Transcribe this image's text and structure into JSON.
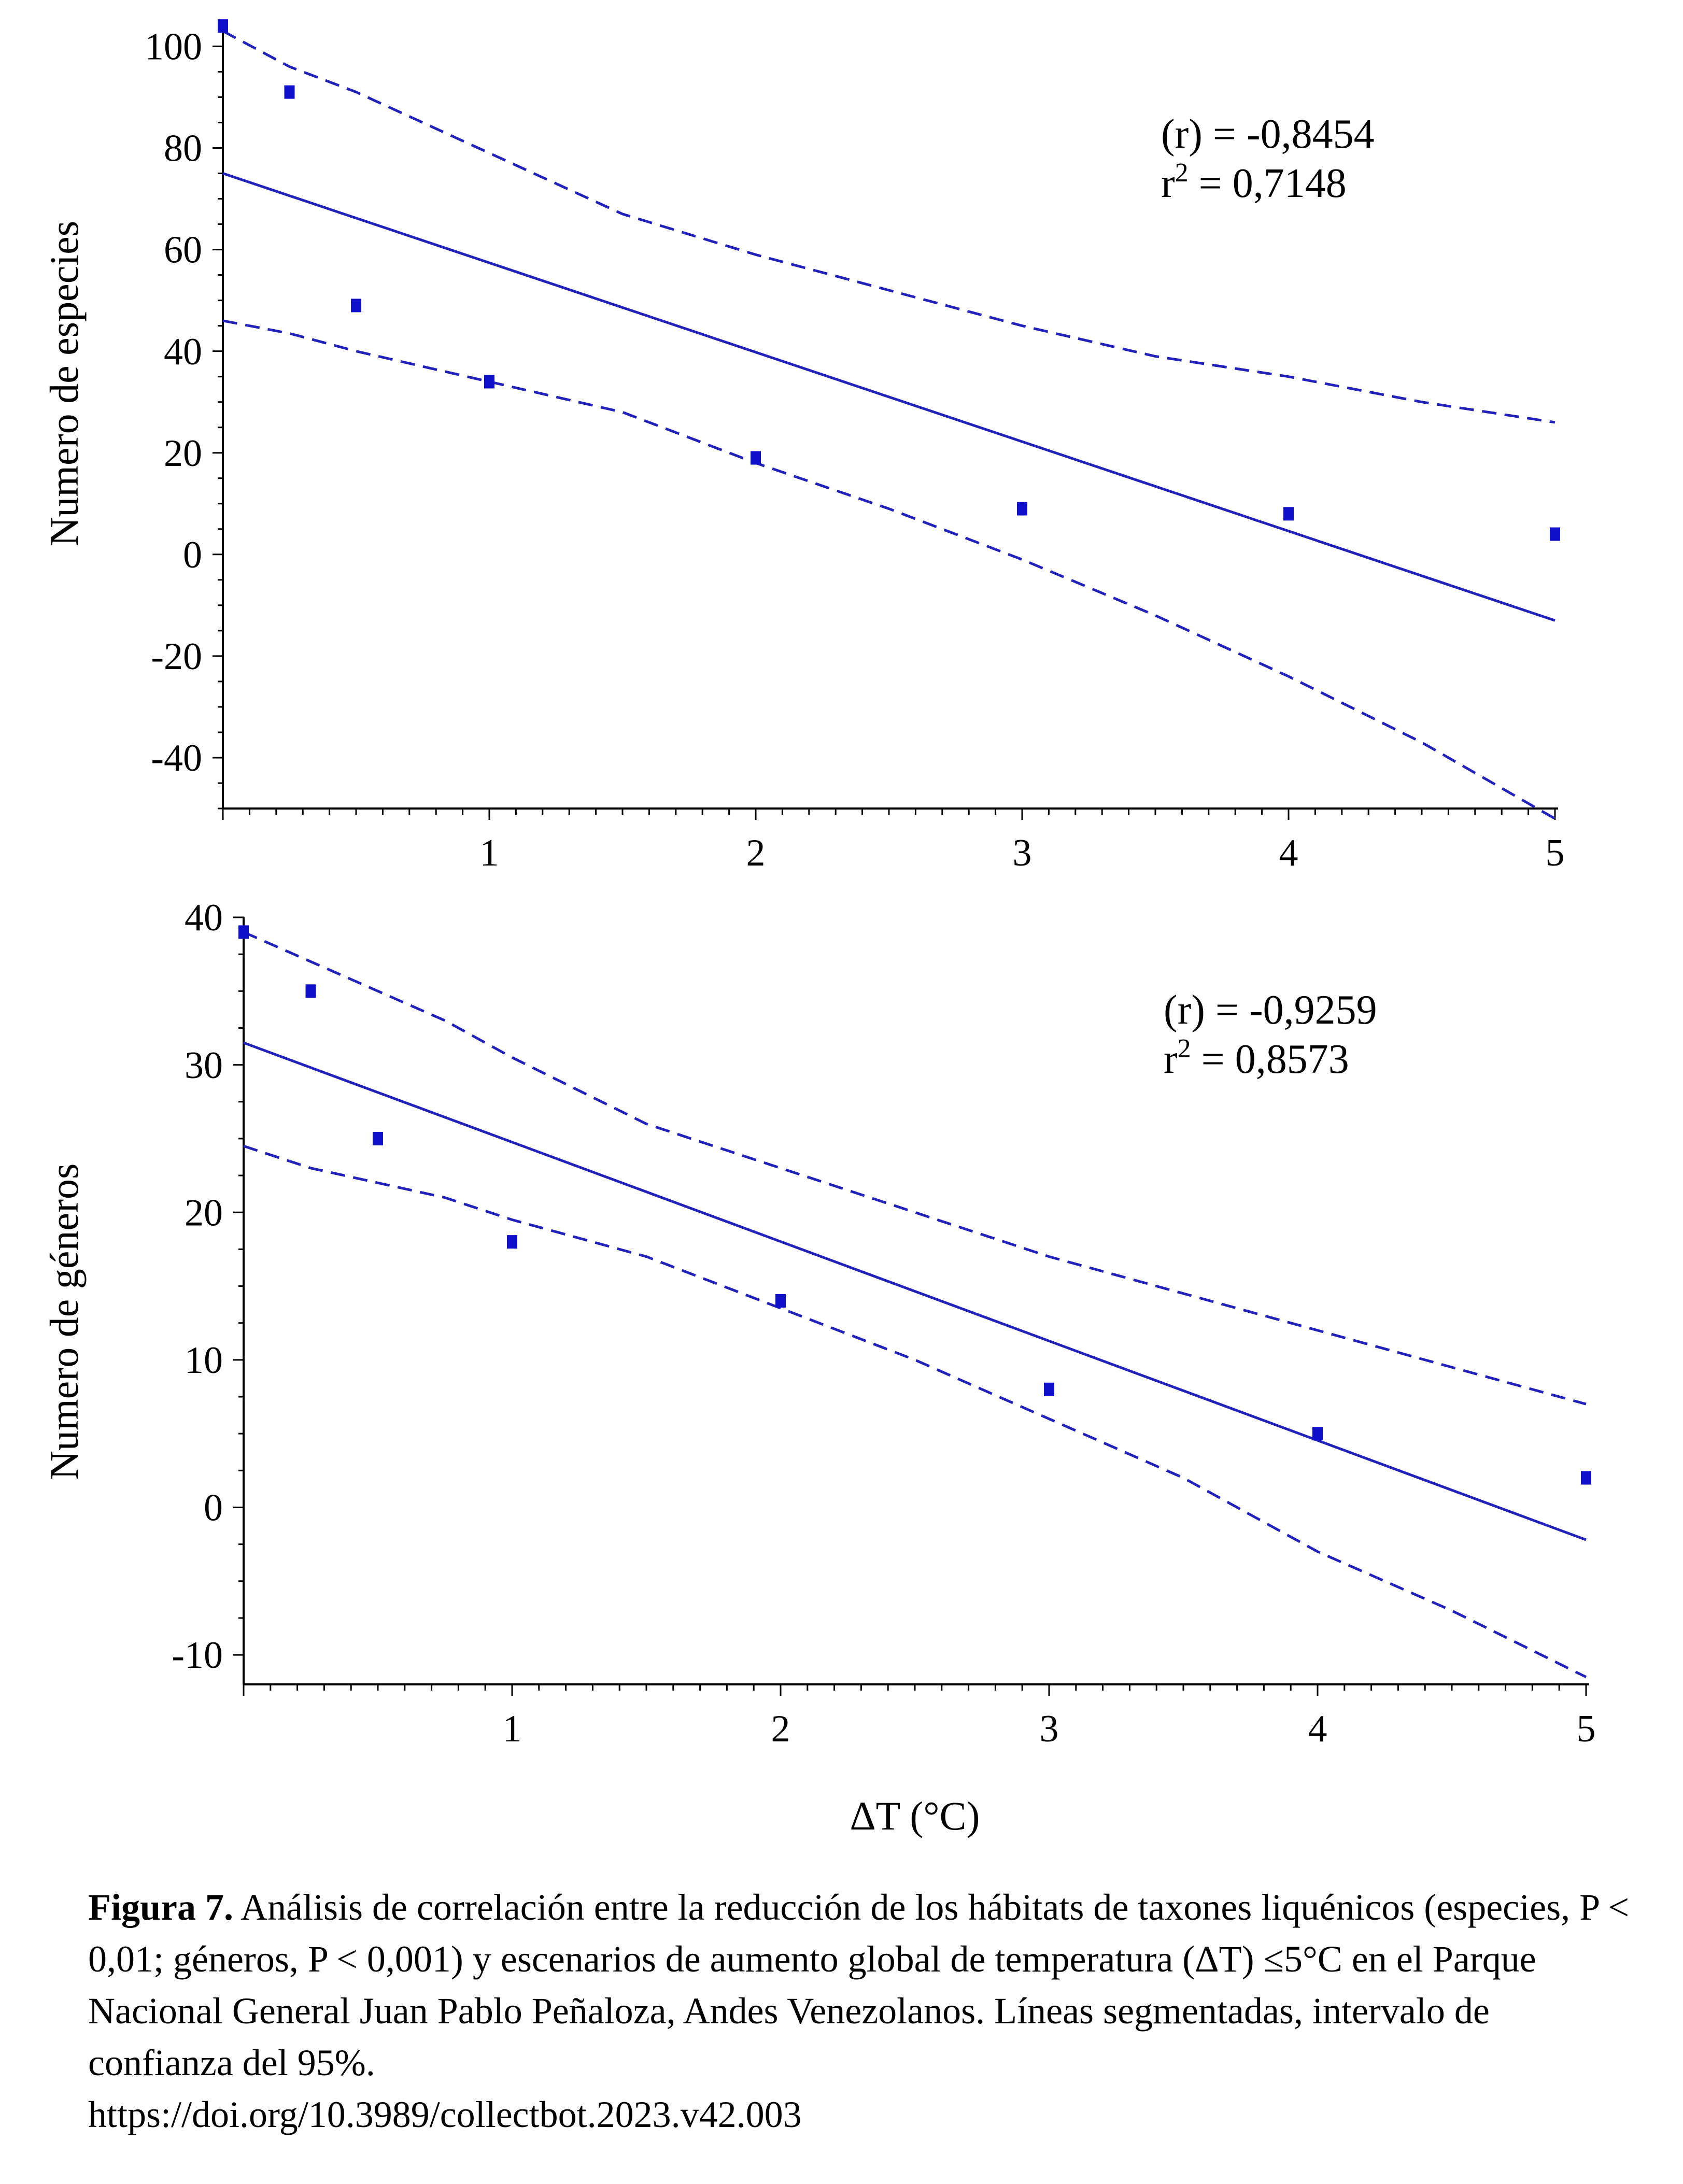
{
  "chart_data": [
    {
      "type": "scatter",
      "title": "",
      "xlabel": "",
      "ylabel": "Numero de especies",
      "xlim": [
        0,
        5
      ],
      "ylim": [
        -50,
        103
      ],
      "x_ticks": [
        1,
        2,
        3,
        4,
        5
      ],
      "y_ticks": [
        -40,
        -20,
        0,
        20,
        40,
        60,
        80,
        100
      ],
      "points": {
        "x": [
          0,
          0.25,
          0.5,
          1,
          2,
          3,
          4,
          5
        ],
        "y": [
          104,
          91,
          49,
          34,
          19,
          9,
          8,
          4
        ]
      },
      "fit_line": {
        "x": [
          0,
          5
        ],
        "y": [
          75,
          -13
        ]
      },
      "ci_upper": {
        "x": [
          0,
          0.25,
          0.5,
          0.75,
          1,
          1.5,
          2,
          2.5,
          3,
          3.5,
          4,
          4.5,
          5
        ],
        "y": [
          103,
          96,
          91,
          85,
          79,
          67,
          59,
          52,
          45,
          39,
          35,
          30,
          26
        ]
      },
      "ci_lower": {
        "x": [
          0,
          0.25,
          0.5,
          0.75,
          1,
          1.5,
          2,
          2.5,
          3,
          3.5,
          4,
          4.5,
          5
        ],
        "y": [
          46,
          43.5,
          40,
          37,
          34,
          28,
          18,
          9,
          -1,
          -12,
          -24,
          -37,
          -52
        ]
      },
      "annotation": {
        "r_line": "(r) = -0,8454",
        "r2_prefix": "r",
        "r2_exp": "2",
        "r2_value": " = 0,7148"
      },
      "colors": {
        "points": "#1010c8",
        "lines": "#2222bb",
        "axes": "#000000"
      }
    },
    {
      "type": "scatter",
      "title": "",
      "xlabel": "ΔT (°C)",
      "ylabel": "Numero de géneros",
      "xlim": [
        0,
        5
      ],
      "ylim": [
        -12,
        40
      ],
      "x_ticks": [
        1,
        2,
        3,
        4,
        5
      ],
      "y_ticks": [
        -10,
        0,
        10,
        20,
        30,
        40
      ],
      "points": {
        "x": [
          0,
          0.25,
          0.5,
          1,
          2,
          3,
          4,
          5
        ],
        "y": [
          39,
          35,
          25,
          18,
          14,
          8,
          5,
          2
        ]
      },
      "fit_line": {
        "x": [
          0,
          5
        ],
        "y": [
          31.5,
          -2.2
        ]
      },
      "ci_upper": {
        "x": [
          0,
          0.25,
          0.5,
          0.75,
          1,
          1.5,
          2,
          2.5,
          3,
          3.5,
          4,
          4.5,
          5
        ],
        "y": [
          39,
          37,
          35,
          33,
          30.5,
          26,
          23,
          20,
          17,
          14.5,
          12,
          9.5,
          7
        ]
      },
      "ci_lower": {
        "x": [
          0,
          0.25,
          0.5,
          0.75,
          1,
          1.5,
          2,
          2.5,
          3,
          3.5,
          4,
          4.5,
          5
        ],
        "y": [
          24.5,
          23,
          22,
          21,
          19.5,
          17,
          13.5,
          10,
          6,
          2,
          -3,
          -7,
          -11.5
        ]
      },
      "annotation": {
        "r_line": "(r) = -0,9259",
        "r2_prefix": "r",
        "r2_exp": "2",
        "r2_value": " = 0,8573"
      },
      "colors": {
        "points": "#1010c8",
        "lines": "#2222bb",
        "axes": "#000000"
      }
    }
  ],
  "caption": {
    "label": "Figura 7.",
    "text": " Análisis de correlación entre la reducción de los hábitats de taxones liquénicos (especies, P < 0,01; géneros, P < 0,001) y escenarios de aumento global de temperatura (ΔT) ≤5°C en el Parque Nacional General Juan Pablo Peñaloza, Andes Venezolanos. Líneas segmentadas, intervalo de confianza del 95%.",
    "doi": "https://doi.org/10.3989/collectbot.2023.v42.003"
  }
}
